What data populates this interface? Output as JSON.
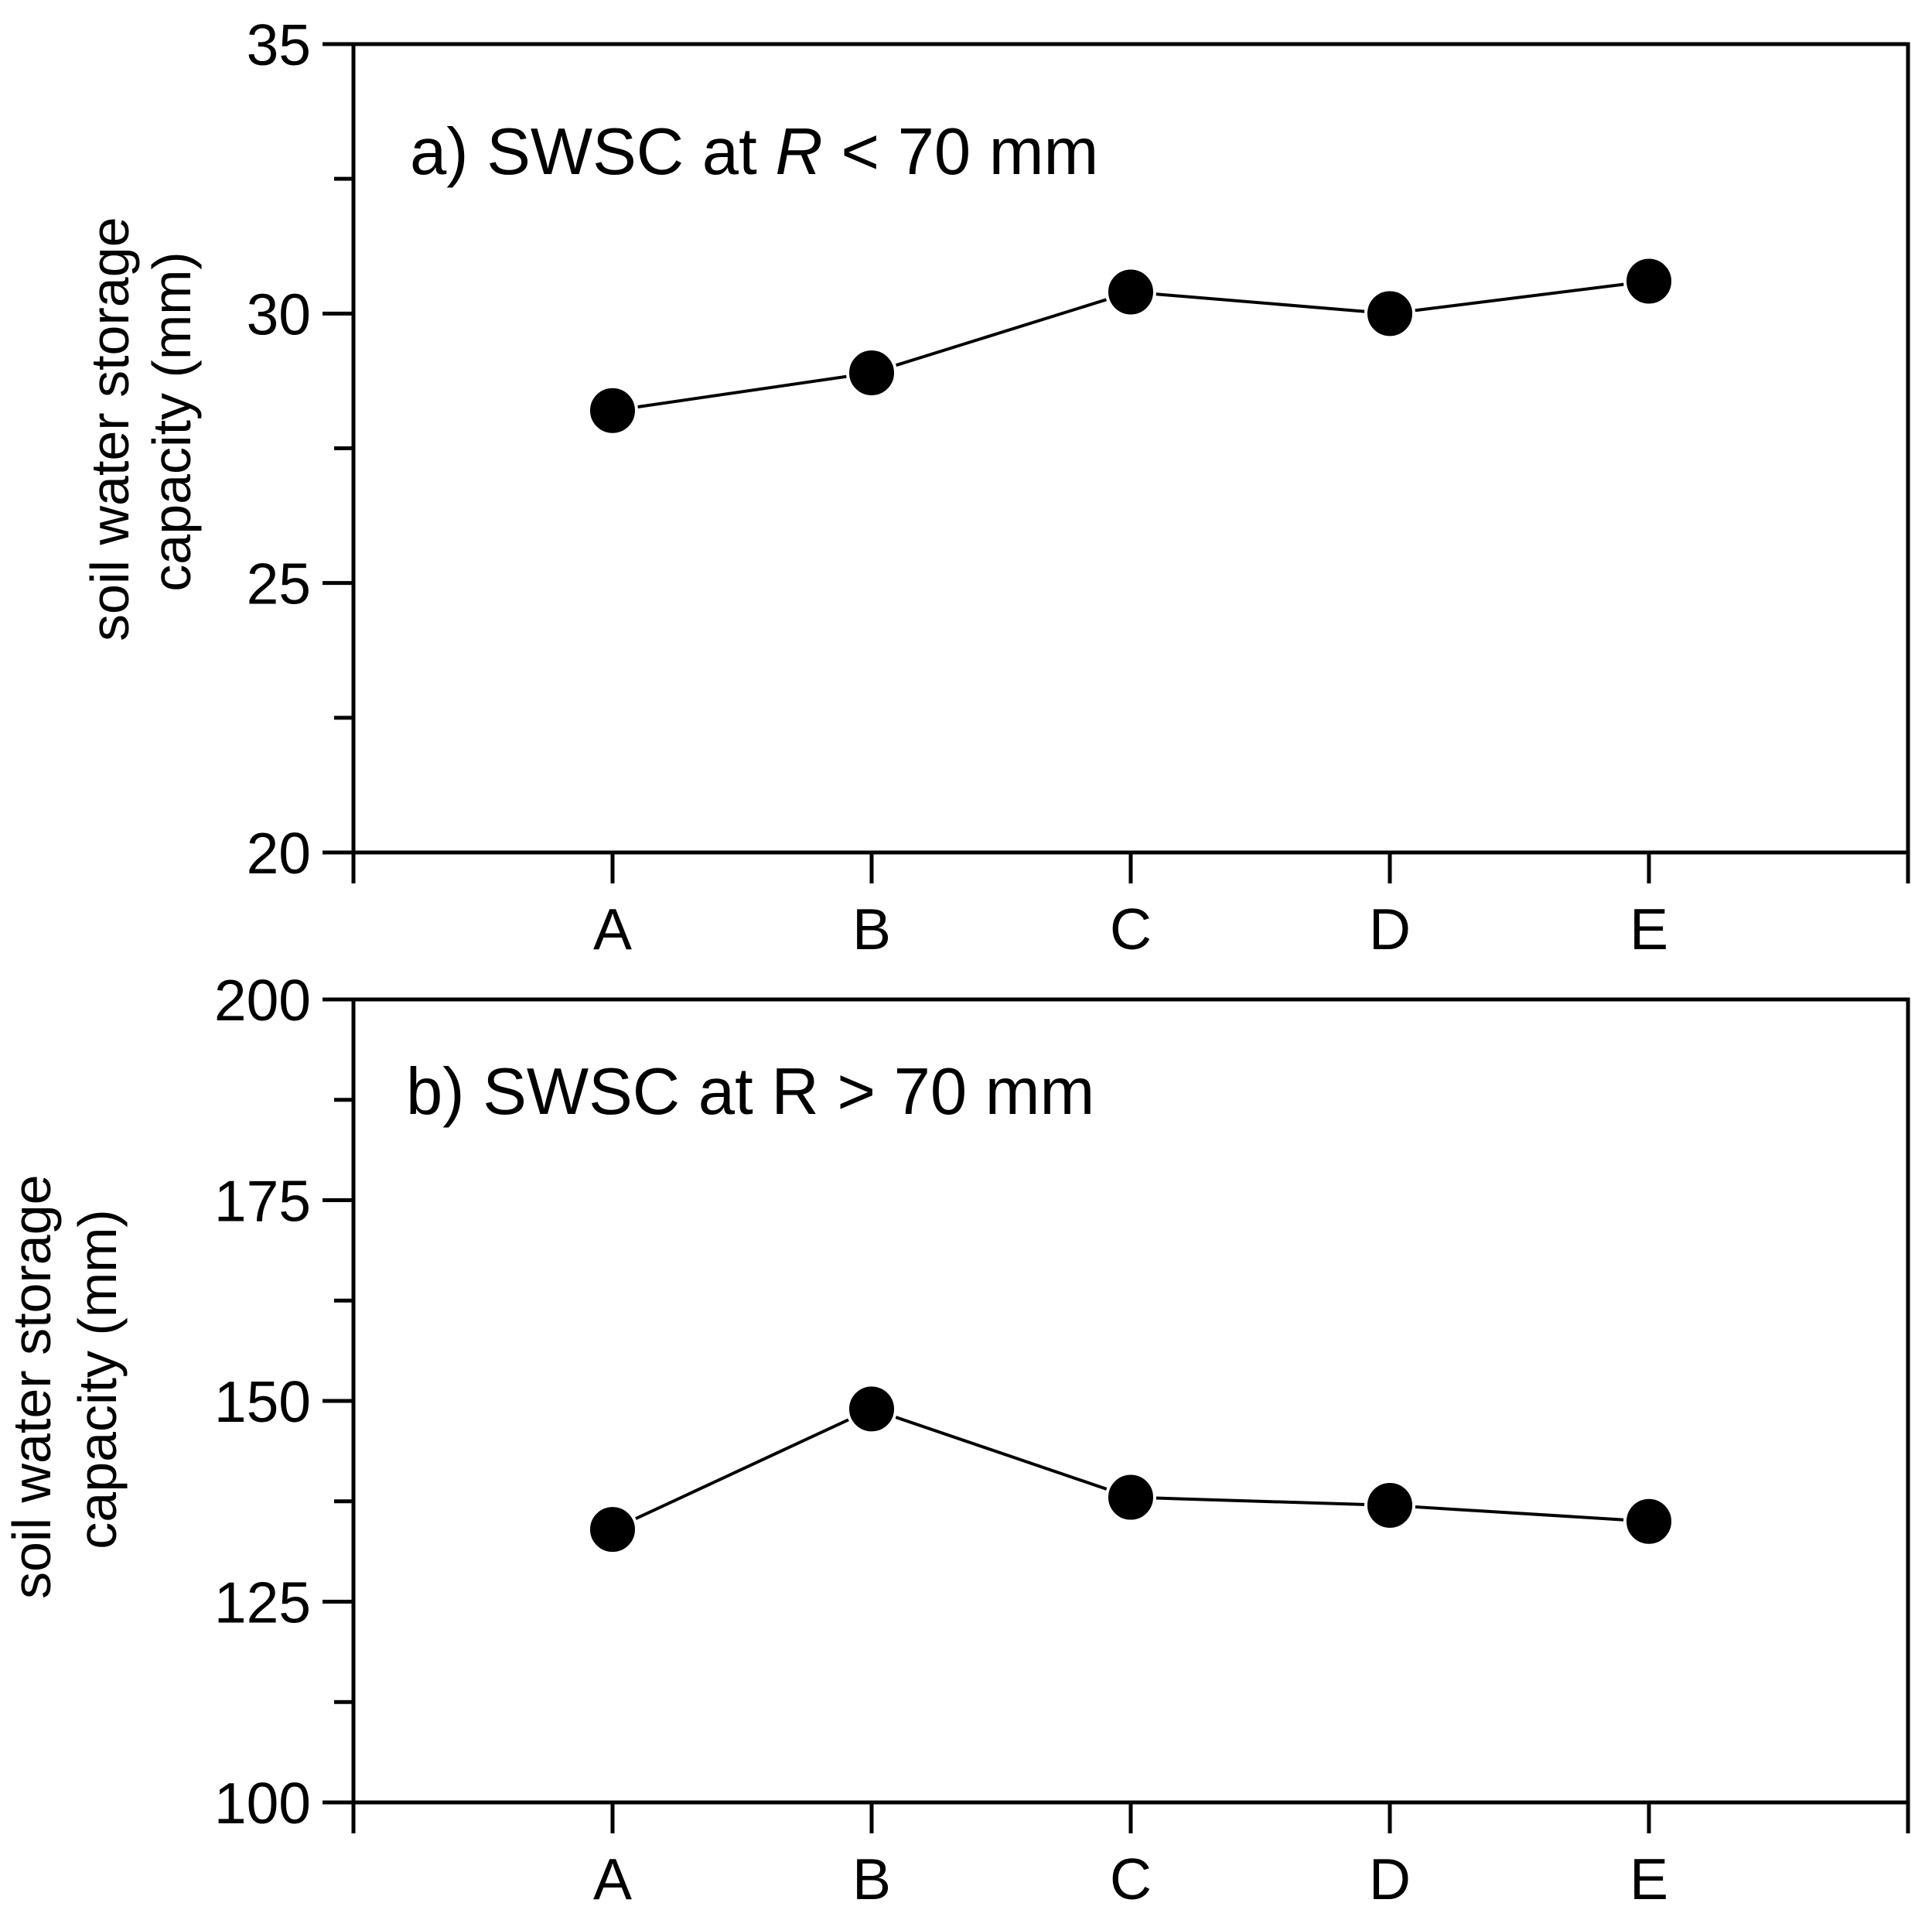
{
  "chart_data": [
    {
      "type": "line",
      "title_parts": [
        "a) SWSC at ",
        "R",
        " < 70 mm"
      ],
      "ylabel_lines": [
        "soil water storage",
        "capacity (mm)"
      ],
      "xlabel": "",
      "categories": [
        "A",
        "B",
        "C",
        "D",
        "E"
      ],
      "values": [
        28.2,
        28.9,
        30.4,
        30.0,
        30.6
      ],
      "ylim": [
        20,
        35
      ],
      "yticks": [
        20,
        25,
        30,
        35
      ],
      "yminor_step": 2.5,
      "grid": false,
      "marker": "filled-circle"
    },
    {
      "type": "line",
      "title_parts": [
        "b) SWSC at R > 70 mm",
        "",
        ""
      ],
      "ylabel_lines": [
        "soil water storage",
        "capacity (mm)"
      ],
      "xlabel": "",
      "categories": [
        "A",
        "B",
        "C",
        "D",
        "E"
      ],
      "values": [
        134,
        149,
        138,
        137,
        135
      ],
      "ylim": [
        100,
        200
      ],
      "yticks": [
        100,
        125,
        150,
        175,
        200
      ],
      "yminor_step": 12.5,
      "grid": false,
      "marker": "filled-circle"
    }
  ]
}
